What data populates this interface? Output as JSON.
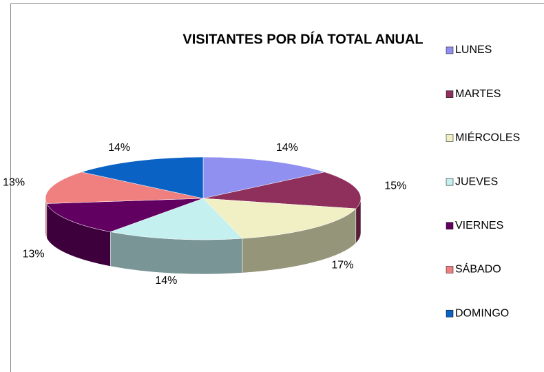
{
  "chart_data": {
    "type": "pie",
    "title": "VISITANTES POR DÍA TOTAL ANUAL",
    "categories": [
      "LUNES",
      "MARTES",
      "MIÉRCOLES",
      "JUEVES",
      "VIERNES",
      "SÁBADO",
      "DOMINGO"
    ],
    "values": [
      14,
      15,
      17,
      14,
      13,
      13,
      14
    ],
    "value_labels": [
      "14%",
      "15%",
      "17%",
      "14%",
      "13%",
      "13%",
      "14%"
    ],
    "colors": [
      "#9090f0",
      "#8e2f5c",
      "#f0f0c4",
      "#c4f0f0",
      "#620062",
      "#f08080",
      "#0a62c4"
    ],
    "legend": "right",
    "three_d": true
  }
}
